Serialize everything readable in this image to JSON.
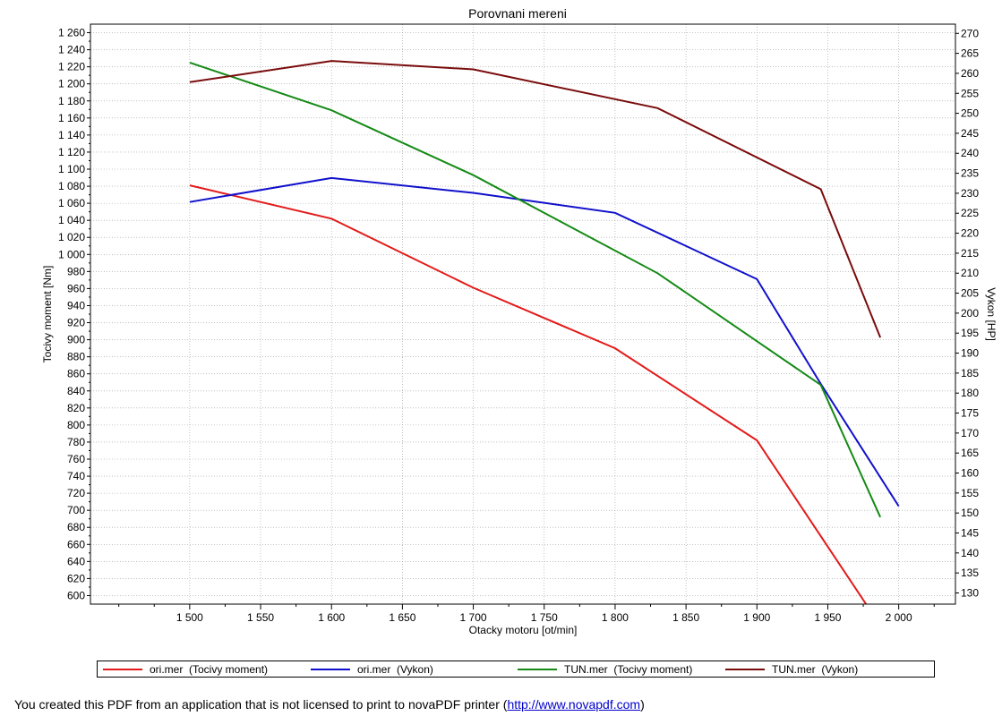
{
  "chart_data": {
    "type": "line",
    "title": "Porovnani mereni",
    "xlabel": "Otacky motoru [ot/min]",
    "ylabel": "Tocivy moment [Nm]",
    "y2label": "Vykon [HP]",
    "xlim": [
      1430,
      2040
    ],
    "ylim": [
      590,
      1270
    ],
    "y2lim": [
      127.2,
      272.3
    ],
    "xticks": [
      1500,
      1550,
      1600,
      1650,
      1700,
      1750,
      1800,
      1850,
      1900,
      1950,
      2000
    ],
    "xtick_labels": [
      "1 500",
      "1 550",
      "1 600",
      "1 650",
      "1 700",
      "1 750",
      "1 800",
      "1 850",
      "1 900",
      "1 950",
      "2 000"
    ],
    "yticks": [
      600,
      620,
      640,
      660,
      680,
      700,
      720,
      740,
      760,
      780,
      800,
      820,
      840,
      860,
      880,
      900,
      920,
      940,
      960,
      980,
      1000,
      1020,
      1040,
      1060,
      1080,
      1100,
      1120,
      1140,
      1160,
      1180,
      1200,
      1220,
      1240,
      1260
    ],
    "ytick_labels": [
      "600",
      "620",
      "640",
      "660",
      "680",
      "700",
      "720",
      "740",
      "760",
      "780",
      "800",
      "820",
      "840",
      "860",
      "880",
      "900",
      "920",
      "940",
      "960",
      "980",
      "1 000",
      "1 020",
      "1 040",
      "1 060",
      "1 080",
      "1 100",
      "1 120",
      "1 140",
      "1 160",
      "1 180",
      "1 200",
      "1 220",
      "1 240",
      "1 260"
    ],
    "y2ticks": [
      130,
      135,
      140,
      145,
      150,
      155,
      160,
      165,
      170,
      175,
      180,
      185,
      190,
      195,
      200,
      205,
      210,
      215,
      220,
      225,
      230,
      235,
      240,
      245,
      250,
      255,
      260,
      265,
      270
    ],
    "y2tick_labels": [
      "130",
      "135",
      "140",
      "145",
      "150",
      "155",
      "160",
      "165",
      "170",
      "175",
      "180",
      "185",
      "190",
      "195",
      "200",
      "205",
      "210",
      "215",
      "220",
      "225",
      "230",
      "235",
      "240",
      "245",
      "250",
      "255",
      "260",
      "265",
      "270"
    ],
    "grid": true,
    "legend_position": "bottom",
    "series": [
      {
        "name": "ori.mer  (Tocivy moment)",
        "axis": "left",
        "color": "#e31a1a",
        "x": [
          1500,
          1600,
          1700,
          1800,
          1900,
          1977
        ],
        "y": [
          1081,
          1042,
          961,
          890,
          782,
          590
        ]
      },
      {
        "name": "ori.mer  (Vykon)",
        "axis": "right",
        "color": "#1010cc",
        "x": [
          1500,
          1600,
          1700,
          1800,
          1900,
          1945,
          2000
        ],
        "y": [
          227.8,
          233.8,
          230.1,
          225.1,
          208.5,
          182.3,
          151.7
        ]
      },
      {
        "name": "TUN.mer  (Tocivy moment)",
        "axis": "left",
        "color": "#158a15",
        "x": [
          1500,
          1600,
          1700,
          1830,
          1945,
          1987
        ],
        "y": [
          1225,
          1169,
          1093,
          978,
          847,
          692
        ]
      },
      {
        "name": "TUN.mer  (Vykon)",
        "axis": "right",
        "color": "#7a0c0c",
        "x": [
          1500,
          1600,
          1700,
          1830,
          1945,
          1987
        ],
        "y": [
          257.8,
          263.1,
          261.0,
          251.3,
          231.0,
          193.9
        ]
      }
    ]
  },
  "footer": {
    "prefix": "You created this PDF from an application that is not licensed to print to novaPDF printer (",
    "link_text": "http://www.novapdf.com",
    "suffix": ")"
  }
}
